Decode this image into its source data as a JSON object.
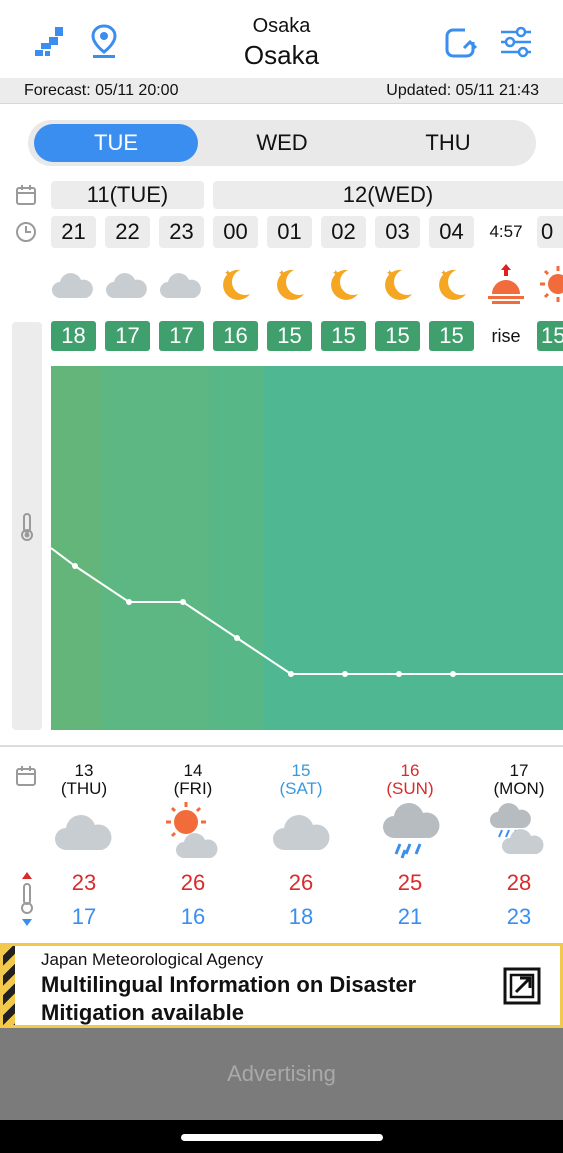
{
  "header": {
    "title_small": "Osaka",
    "title_big": "Osaka",
    "forecast": "Forecast: 05/11 20:00",
    "updated": "Updated: 05/11 21:43",
    "accent_color": "#3a8ef0"
  },
  "tabs": [
    {
      "label": "TUE",
      "active": true
    },
    {
      "label": "WED",
      "active": false
    },
    {
      "label": "THU",
      "active": false
    }
  ],
  "hourly": {
    "dates": [
      "11(TUE)",
      "12(WED)"
    ],
    "hours": [
      "21",
      "22",
      "23",
      "00",
      "01",
      "02",
      "03",
      "04",
      "4:57",
      "0"
    ],
    "weather": [
      "cloud",
      "cloud",
      "cloud",
      "moon",
      "moon",
      "moon",
      "moon",
      "moon",
      "sunrise",
      "sun"
    ],
    "temps": [
      "18",
      "17",
      "17",
      "16",
      "15",
      "15",
      "15",
      "15",
      "rise",
      "15"
    ],
    "chart_color": "#4fb892"
  },
  "daily": [
    {
      "date": "13",
      "dow": "(THU)",
      "icon": "cloud",
      "hi": "23",
      "lo": "17",
      "color": "#111111"
    },
    {
      "date": "14",
      "dow": "(FRI)",
      "icon": "sun-cloud",
      "hi": "26",
      "lo": "16",
      "color": "#111111"
    },
    {
      "date": "15",
      "dow": "(SAT)",
      "icon": "cloud",
      "hi": "26",
      "lo": "18",
      "color": "#3a9ad9"
    },
    {
      "date": "16",
      "dow": "(SUN)",
      "icon": "rain",
      "hi": "25",
      "lo": "21",
      "color": "#d82b2b"
    },
    {
      "date": "17",
      "dow": "(MON)",
      "icon": "rain-cloud",
      "hi": "28",
      "lo": "23",
      "color": "#111111"
    }
  ],
  "banner": {
    "agency": "Japan Meteorological Agency",
    "message": "Multilingual Information on Disaster Mitigation available"
  },
  "ad": {
    "label": "Advertising"
  }
}
